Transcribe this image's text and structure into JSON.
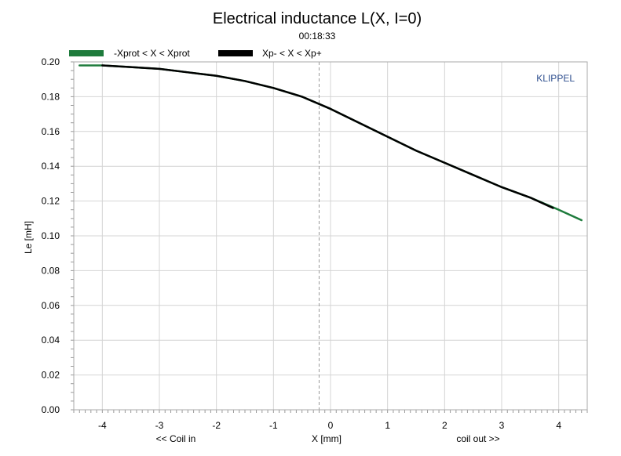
{
  "chart_data": {
    "type": "line",
    "title": "Electrical inductance L(X, I=0)",
    "subtitle": "00:18:33",
    "xlabel": "X [mm]",
    "xlabel_left": "<< Coil in",
    "xlabel_right": "coil out >>",
    "ylabel": "Le [mH]",
    "brand": "KLIPPEL",
    "xlim": [
      -4.5,
      4.5
    ],
    "ylim": [
      0,
      0.2
    ],
    "xticks": [
      -4,
      -3,
      -2,
      -1,
      0,
      1,
      2,
      3,
      4
    ],
    "xtick_labels": [
      "-4",
      "-3",
      "-2",
      "-1",
      "0",
      "1",
      "2",
      "3",
      "4"
    ],
    "yticks": [
      0,
      0.02,
      0.04,
      0.06,
      0.08,
      0.1,
      0.12,
      0.14,
      0.16,
      0.18,
      0.2
    ],
    "ytick_labels": [
      "0.00",
      "0.02",
      "0.04",
      "0.06",
      "0.08",
      "0.10",
      "0.12",
      "0.14",
      "0.16",
      "0.18",
      "0.20"
    ],
    "grid": true,
    "rest_position_line_x": -0.2,
    "legend_placement": "top",
    "series": [
      {
        "name": "-Xprot < X < Xprot",
        "color": "#1e7b3c",
        "x": [
          -4.4,
          -4.0,
          -3.5,
          -3.0,
          -2.5,
          -2.0,
          -1.5,
          -1.0,
          -0.5,
          0.0,
          0.5,
          1.0,
          1.5,
          2.0,
          2.5,
          3.0,
          3.5,
          4.0,
          4.4
        ],
        "y": [
          0.198,
          0.198,
          0.197,
          0.196,
          0.194,
          0.192,
          0.189,
          0.185,
          0.18,
          0.173,
          0.165,
          0.157,
          0.149,
          0.142,
          0.135,
          0.128,
          0.122,
          0.115,
          0.109
        ]
      },
      {
        "name": "Xp- < X < Xp+",
        "color": "#000000",
        "x": [
          -4.0,
          -3.5,
          -3.0,
          -2.5,
          -2.0,
          -1.5,
          -1.0,
          -0.5,
          0.0,
          0.5,
          1.0,
          1.5,
          2.0,
          2.5,
          3.0,
          3.5,
          3.9
        ],
        "y": [
          0.198,
          0.197,
          0.196,
          0.194,
          0.192,
          0.189,
          0.185,
          0.18,
          0.173,
          0.165,
          0.157,
          0.149,
          0.142,
          0.135,
          0.128,
          0.122,
          0.116
        ]
      }
    ]
  }
}
